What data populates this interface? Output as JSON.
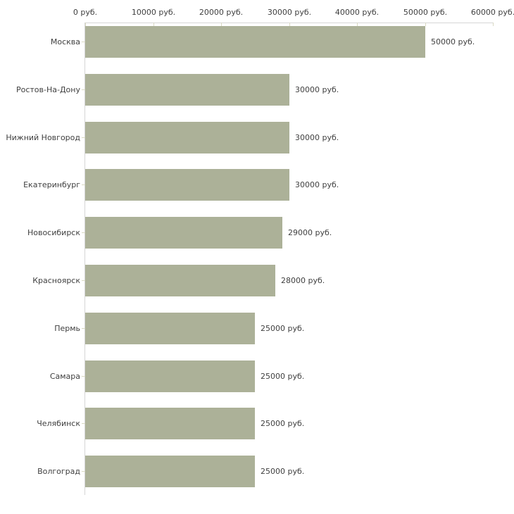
{
  "chart_data": {
    "type": "bar",
    "orientation": "horizontal",
    "title": "",
    "xlabel": "",
    "ylabel": "",
    "unit": "руб.",
    "categories": [
      "Москва",
      "Ростов-На-Дону",
      "Нижний Новгород",
      "Екатеринбург",
      "Новосибирск",
      "Красноярск",
      "Пермь",
      "Самара",
      "Челябинск",
      "Волгоград"
    ],
    "values": [
      50000,
      30000,
      30000,
      30000,
      29000,
      28000,
      25000,
      25000,
      25000,
      25000
    ],
    "value_labels": [
      "50000 руб.",
      "30000 руб.",
      "30000 руб.",
      "30000 руб.",
      "29000 руб.",
      "28000 руб.",
      "25000 руб.",
      "25000 руб.",
      "25000 руб.",
      "25000 руб."
    ],
    "x_ticks": [
      0,
      10000,
      20000,
      30000,
      40000,
      50000,
      60000
    ],
    "x_tick_labels": [
      "0 руб.",
      "10000 руб.",
      "20000 руб.",
      "30000 руб.",
      "40000 руб.",
      "50000 руб.",
      "60000 руб."
    ],
    "xlim": [
      0,
      60000
    ],
    "grid": false,
    "legend": null,
    "colors": {
      "bar": "#acb198",
      "axis_line": "#d6d6d6",
      "tick": "#d9d9c4",
      "text": "#3f3f3f",
      "background": "#ffffff"
    }
  }
}
